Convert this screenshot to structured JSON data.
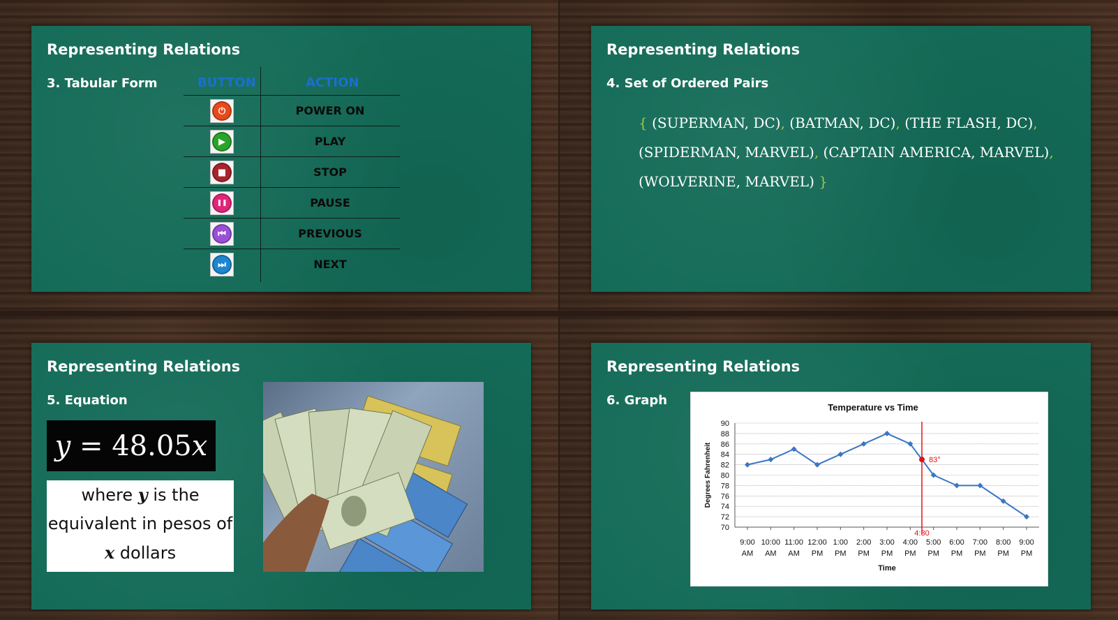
{
  "slides": {
    "s3": {
      "title": "Representing Relations",
      "subtitle": "3. Tabular Form",
      "table": {
        "col_button": "BUTTON",
        "col_action": "ACTION",
        "rows": [
          {
            "icon": "power-icon",
            "color": "#e84a1c",
            "action": "POWER ON"
          },
          {
            "icon": "play-icon",
            "color": "#2aa52a",
            "action": "PLAY"
          },
          {
            "icon": "stop-icon",
            "color": "#a8252b",
            "action": "STOP"
          },
          {
            "icon": "pause-icon",
            "color": "#e0267a",
            "action": "PAUSE"
          },
          {
            "icon": "previous-icon",
            "color": "#9b4fd6",
            "action": "PREVIOUS"
          },
          {
            "icon": "next-icon",
            "color": "#1f86cf",
            "action": "NEXT"
          }
        ]
      }
    },
    "s4": {
      "title": "Representing Relations",
      "subtitle": "4. Set of Ordered Pairs",
      "open_brace": "{",
      "close_brace": "}",
      "pairs": [
        "(SUPERMAN, DC)",
        "(BATMAN, DC)",
        "(THE FLASH, DC)",
        "(SPIDERMAN, MARVEL)",
        "(CAPTAIN AMERICA, MARVEL)",
        "(WOLVERINE, MARVEL)"
      ]
    },
    "s5": {
      "title": "Representing Relations",
      "subtitle": "5. Equation",
      "equation_lhs": "y",
      "equation_eq": " = 48.05",
      "equation_rhs": "x",
      "where_1": "where ",
      "where_y": "y",
      "where_2": " is the",
      "where_3": "equivalent in pesos of",
      "where_x": "x",
      "where_4": " dollars"
    },
    "s6": {
      "title": "Representing Relations",
      "subtitle": "6. Graph"
    }
  },
  "chart_data": {
    "type": "line",
    "title": "Temperature vs Time",
    "xlabel": "Time",
    "ylabel": "Degrees Fahrenheit",
    "categories": [
      "9:00 AM",
      "10:00 AM",
      "11:00 AM",
      "12:00 PM",
      "1:00 PM",
      "2:00 PM",
      "3:00 PM",
      "4:00 PM",
      "5:00 PM",
      "6:00 PM",
      "7:00 PM",
      "8:00 PM",
      "9:00 PM"
    ],
    "series": [
      {
        "values": [
          82,
          83,
          85,
          82,
          84,
          86,
          88,
          86,
          80,
          78,
          78,
          75,
          72
        ],
        "color": "#3b76c4"
      }
    ],
    "ylim": [
      70,
      90
    ],
    "ytick_step": 2,
    "grid": true,
    "annotation": {
      "x_label": "4:30",
      "value_label": "83°",
      "x": 7.5,
      "y": 83,
      "color": "#e01414"
    }
  }
}
